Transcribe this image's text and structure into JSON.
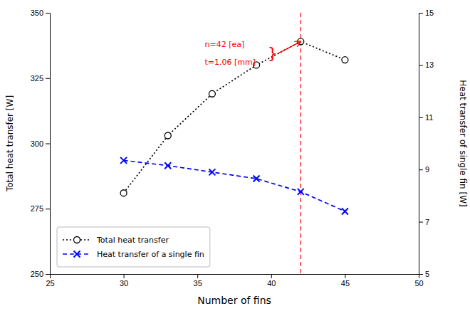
{
  "chart_data": {
    "type": "line",
    "xlabel": "Number of fins",
    "ylabel": "Total heat transfer [W]",
    "y2label": "Heat transfer of single fin [W]",
    "x": [
      30,
      33,
      36,
      39,
      42,
      45
    ],
    "series": [
      {
        "name": "Total heat transfer",
        "color": "black",
        "marker": "circle",
        "line_style": "dotted",
        "values": [
          281,
          303,
          319,
          330,
          339,
          332
        ]
      },
      {
        "name": "Heat transfer of a single fin",
        "color": "blue",
        "marker": "x",
        "line_style": "dashed",
        "axis": "y2",
        "values": [
          9.35,
          9.15,
          8.9,
          8.65,
          8.15,
          7.4
        ]
      }
    ],
    "xlim": [
      25,
      50
    ],
    "xticks": [
      25,
      30,
      35,
      40,
      45,
      50
    ],
    "ylim": [
      250,
      350
    ],
    "yticks": [
      250,
      275,
      300,
      325,
      350
    ],
    "y2lim": [
      5,
      15
    ],
    "y2ticks": [
      5,
      7,
      9,
      11,
      13,
      15
    ],
    "grid": false,
    "legend": "lower left",
    "vlines": [
      {
        "x": 42,
        "color": "red",
        "line_style": "dashed"
      }
    ],
    "annotations": [
      {
        "text": "n=42 [ea]",
        "x": 35.5,
        "y": 338,
        "color": "red"
      },
      {
        "text": "t=1.06 [mm]",
        "x": 35.5,
        "y": 331,
        "color": "red"
      },
      {
        "text": "}",
        "x": 40.1,
        "y": 334.5,
        "color": "red",
        "arrow": {
          "x": 42,
          "y": 339
        }
      }
    ]
  }
}
